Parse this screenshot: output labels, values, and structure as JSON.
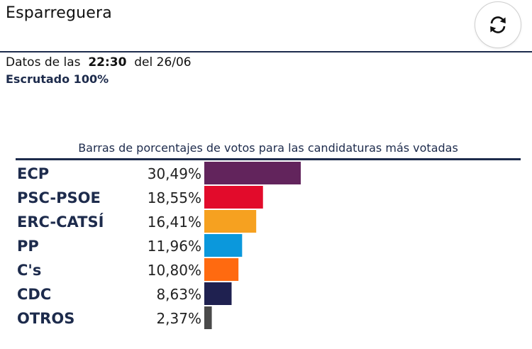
{
  "header": {
    "title": "Esparreguera",
    "refresh_icon": "refresh-icon"
  },
  "status": {
    "prefix": "Datos de las",
    "time": "22:30",
    "date_text": "del 26/06",
    "scrutiny": "Escrutado 100%"
  },
  "chart_data": {
    "type": "bar",
    "orientation": "horizontal",
    "title": "Barras de porcentajes de votos para las candidaturas más votadas",
    "categories": [
      "ECP",
      "PSC-PSOE",
      "ERC-CATSÍ",
      "PP",
      "C's",
      "CDC",
      "OTROS"
    ],
    "values": [
      30.49,
      18.55,
      16.41,
      11.96,
      10.8,
      8.63,
      2.37
    ],
    "labels": [
      "30,49%",
      "18,55%",
      "16,41%",
      "11,96%",
      "10,80%",
      "8,63%",
      "2,37%"
    ],
    "colors": [
      "#62245c",
      "#e20b2b",
      "#f6a120",
      "#0b98dc",
      "#ff6a10",
      "#1f2150",
      "#4a4a4a"
    ],
    "xlim": [
      0,
      100
    ],
    "grid": false
  }
}
